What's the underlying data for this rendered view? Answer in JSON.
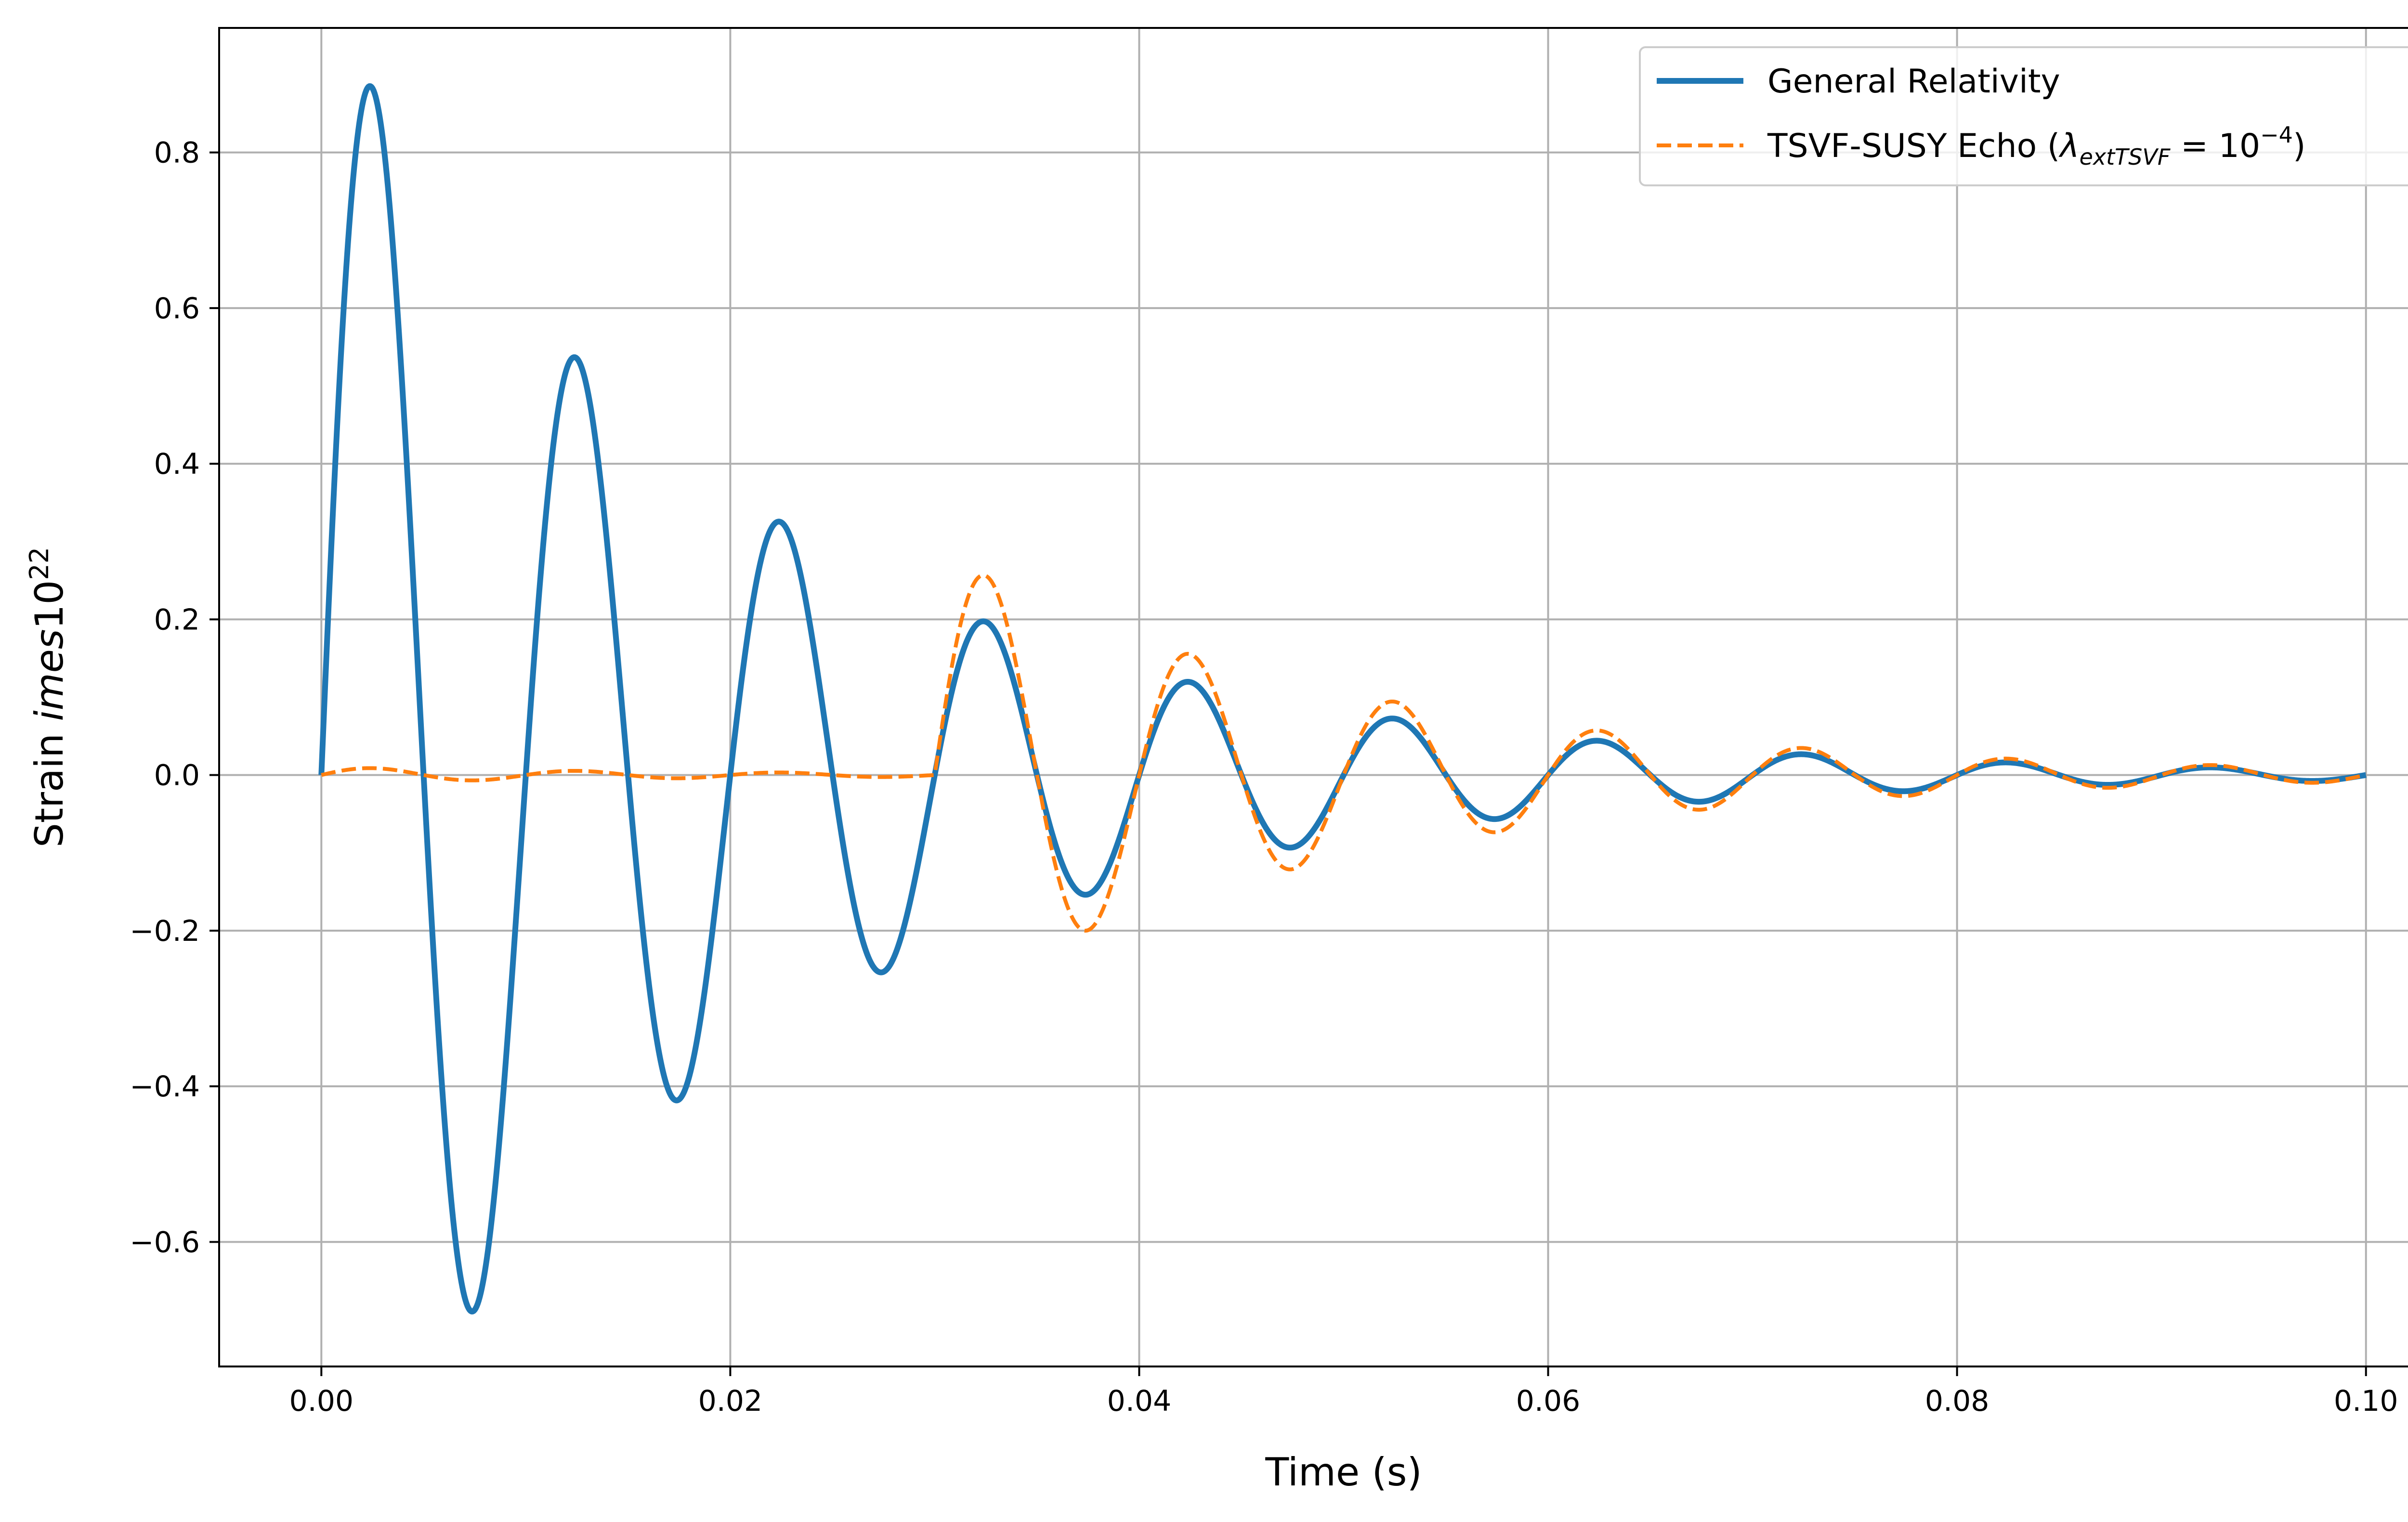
{
  "chart_data": {
    "type": "line",
    "xlabel": "Time (s)",
    "ylabel": {
      "main": "Strain ",
      "italic": "imes",
      "base": "10",
      "superscript": "22"
    },
    "xlim": [
      -0.005,
      0.105
    ],
    "ylim": [
      -0.76,
      0.96
    ],
    "xticks": [
      0.0,
      0.02,
      0.04,
      0.06,
      0.08,
      0.1
    ],
    "xtick_labels": [
      "0.00",
      "0.02",
      "0.04",
      "0.06",
      "0.08",
      "0.10"
    ],
    "yticks": [
      -0.6,
      -0.4,
      -0.2,
      0.0,
      0.2,
      0.4,
      0.6,
      0.8
    ],
    "ytick_labels": [
      "−0.6",
      "−0.4",
      "−0.2",
      "0.0",
      "0.2",
      "0.4",
      "0.6",
      "0.8"
    ],
    "grid": true,
    "legend_position": "top-right",
    "series": [
      {
        "name": "General Relativity",
        "color": "#1f77b4",
        "style": "solid",
        "model": {
          "kind": "damped_sine",
          "amplitude": 1.0,
          "decay_time": 0.02,
          "frequency_hz": 100,
          "t_start": 0.0,
          "t_end": 0.1
        }
      },
      {
        "name": "TSVF-SUSY Echo",
        "legend": {
          "prefix": "TSVF-SUSY Echo (",
          "symbol": "λ",
          "subscript": "extTSVF",
          "equals": " = ",
          "base": "10",
          "exponent": "−4",
          "suffix": ")"
        },
        "color": "#ff7f0e",
        "style": "dashed",
        "model": {
          "kind": "gated_damped_sine",
          "amplitude_before": 0.01,
          "amplitude_after": 1.3,
          "switch_time": 0.03,
          "decay_time": 0.02,
          "frequency_hz": 100,
          "t_start": 0.0,
          "t_end": 0.1
        }
      }
    ]
  }
}
